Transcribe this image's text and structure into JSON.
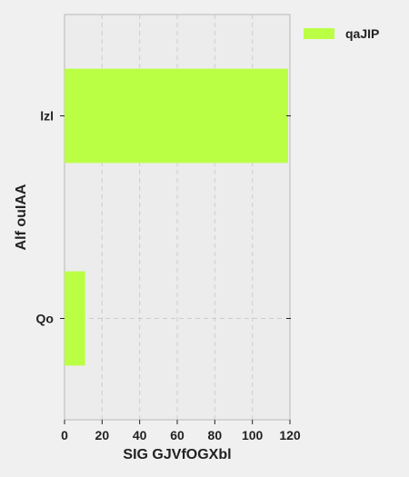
{
  "chart_data": {
    "type": "bar",
    "orientation": "horizontal",
    "categories": [
      "lzl",
      "Qo"
    ],
    "series": [
      {
        "name": "qaJIP",
        "values": [
          119,
          11
        ],
        "color": "#bbff44"
      }
    ],
    "xlabel": "SIG GJVfOGXbl",
    "ylabel": "Alf ouIAA",
    "xlim": [
      0,
      120
    ],
    "xticks": [
      0,
      20,
      40,
      60,
      80,
      100,
      120
    ],
    "grid": true,
    "legend": "top-right outside"
  }
}
